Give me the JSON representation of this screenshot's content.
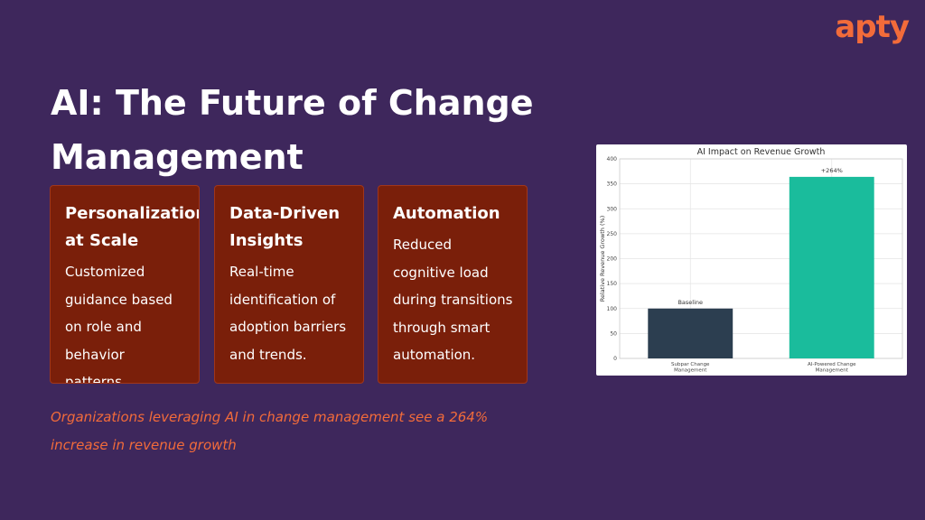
{
  "brand": {
    "logo_text": "apty",
    "accent": "#f26b3a"
  },
  "slide": {
    "title": "AI: The Future of Change Management",
    "cards": [
      {
        "heading": "Personalization at Scale",
        "body": "Customized guidance based on role and behavior patterns."
      },
      {
        "heading": "Data-Driven Insights",
        "body": "Real-time identification of adoption barriers and trends."
      },
      {
        "heading": "Automation",
        "body": "Reduced cognitive load during transitions through smart automation."
      }
    ],
    "footnote": "Organizations leveraging AI in change management see a 264% increase in revenue growth"
  },
  "chart_data": {
    "type": "bar",
    "title": "AI Impact on Revenue Growth",
    "ylabel": "Relative Revenue Growth (%)",
    "xlabel": "",
    "categories": [
      "Subpar Change Management",
      "AI-Powered Change Management"
    ],
    "values": [
      100,
      364
    ],
    "data_labels": [
      "Baseline",
      "+264%"
    ],
    "colors": [
      "#2c3e50",
      "#1abc9c"
    ],
    "ylim": [
      0,
      400
    ],
    "yticks": [
      0,
      50,
      100,
      150,
      200,
      250,
      300,
      350,
      400
    ],
    "grid": true
  }
}
